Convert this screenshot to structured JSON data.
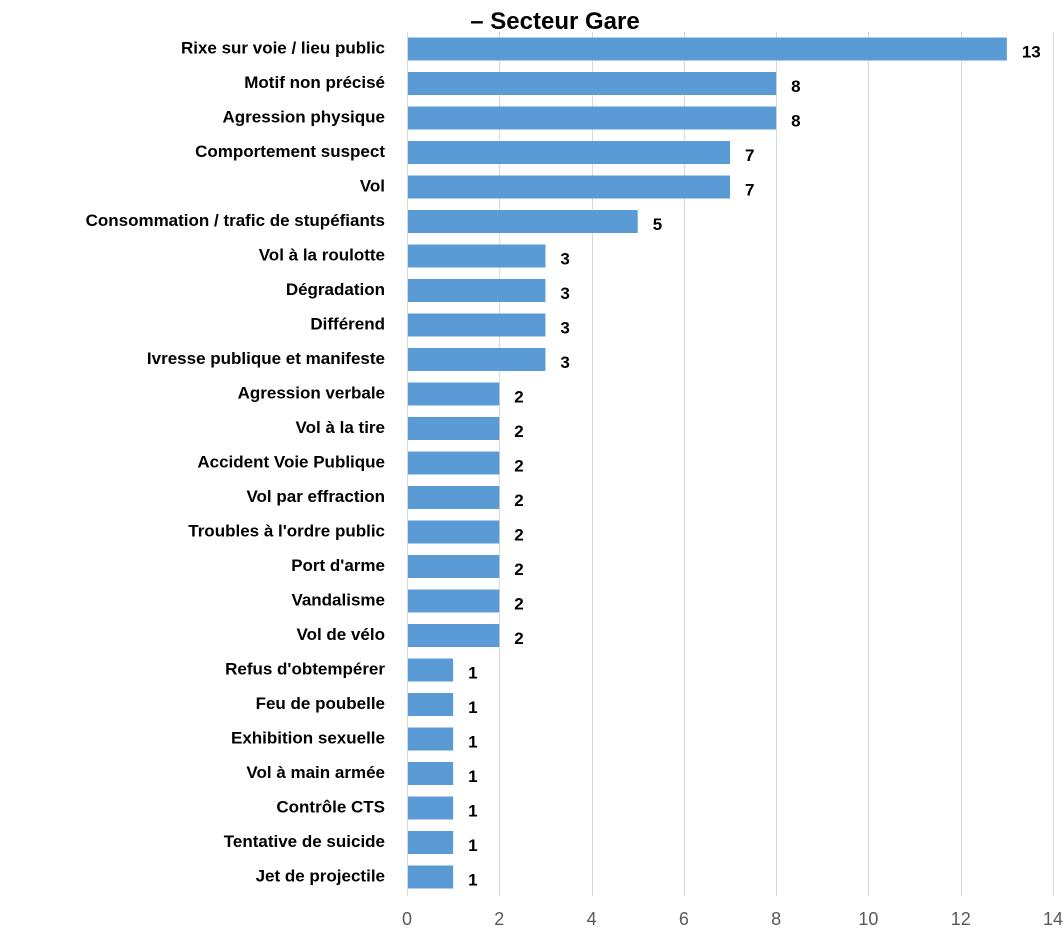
{
  "chart_data": {
    "type": "bar",
    "orientation": "horizontal",
    "title": "– Secteur Gare",
    "categories": [
      "Rixe sur voie / lieu public",
      "Motif non précisé",
      "Agression physique",
      "Comportement suspect",
      "Vol",
      "Consommation / trafic de stupéfiants",
      "Vol à la roulotte",
      "Dégradation",
      "Différend",
      "Ivresse publique et manifeste",
      "Agression verbale",
      "Vol à la tire",
      "Accident Voie Publique",
      "Vol par effraction",
      "Troubles à l'ordre public",
      "Port d'arme",
      "Vandalisme",
      "Vol de vélo",
      "Refus d'obtempérer",
      "Feu de poubelle",
      "Exhibition sexuelle",
      "Vol à main armée",
      "Contrôle CTS",
      "Tentative de suicide",
      "Jet de projectile"
    ],
    "values": [
      13,
      8,
      8,
      7,
      7,
      5,
      3,
      3,
      3,
      3,
      2,
      2,
      2,
      2,
      2,
      2,
      2,
      2,
      1,
      1,
      1,
      1,
      1,
      1,
      1
    ],
    "xlim": [
      0,
      14
    ],
    "xticks": [
      "0",
      "2",
      "4",
      "6",
      "8",
      "10",
      "12",
      "14"
    ],
    "xlabel": "",
    "ylabel": "",
    "grid": "vertical",
    "data_labels": true,
    "bar_color": "#5b9bd5",
    "grid_color": "#d9d9d9",
    "tick_color": "#595959"
  }
}
